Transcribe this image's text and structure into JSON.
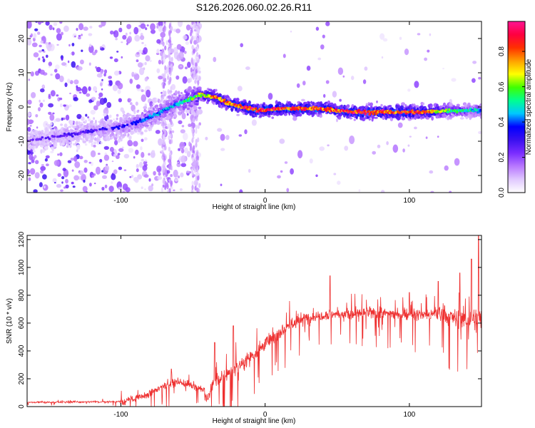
{
  "title": "S126.2026.060.02.26.R11",
  "chart_data": [
    {
      "type": "heatmap",
      "title": "S126.2026.060.02.26.R11",
      "xlabel": "Height of straight line (km)",
      "ylabel": "Frequency (Hz)",
      "xlim": [
        -165,
        150
      ],
      "ylim": [
        -25,
        25
      ],
      "xticks": [
        -100,
        0,
        100
      ],
      "yticks": [
        20,
        10,
        0,
        -10,
        -20
      ],
      "colorbar": {
        "label": "Normalized spectral amplitude",
        "range": [
          0.0,
          0.97
        ],
        "ticks": [
          0.0,
          0.2,
          0.4,
          0.6,
          0.8
        ],
        "tick_labels": [
          "0.0",
          "0.2",
          "0.4",
          "0.6",
          "0.8"
        ],
        "colors": [
          "#ffffff",
          "#e0c8ff",
          "#b878ff",
          "#7a2cff",
          "#3a10f0",
          "#0000ff",
          "#00c8ff",
          "#00ff90",
          "#40ff00",
          "#ffff00",
          "#ffa000",
          "#ff3000",
          "#ff0040",
          "#ff1493"
        ]
      },
      "ridge": {
        "description_points_x": [
          -165,
          -120,
          -100,
          -80,
          -60,
          -45,
          -35,
          -25,
          -15,
          -5,
          10,
          40,
          60,
          75,
          90,
          110,
          130,
          150
        ],
        "frequency": [
          -10,
          -7,
          -6,
          -3,
          1,
          3.5,
          3,
          1,
          0,
          -1,
          -0.5,
          -0.5,
          -1.5,
          -1.5,
          -1.5,
          -1.5,
          -1,
          -1
        ],
        "peak_amplitude": [
          0.25,
          0.3,
          0.35,
          0.45,
          0.5,
          0.7,
          0.85,
          0.9,
          0.92,
          0.95,
          0.95,
          0.9,
          0.95,
          0.95,
          0.92,
          0.9,
          0.6,
          0.5
        ]
      }
    },
    {
      "type": "line",
      "xlabel": "Height of straight line (km)",
      "ylabel": "SNR (10 * v/v)",
      "xlim": [
        -165,
        150
      ],
      "ylim": [
        0,
        1230
      ],
      "xticks": [
        -100,
        0,
        100
      ],
      "yticks": [
        0,
        200,
        400,
        600,
        800,
        1000,
        1200
      ],
      "series": [
        {
          "name": "SNR",
          "color": "#ee3030",
          "trend_x": [
            -165,
            -100,
            -85,
            -70,
            -60,
            -50,
            -42,
            -40,
            -30,
            -20,
            -10,
            0,
            10,
            20,
            30,
            40,
            50,
            60,
            70,
            80,
            90,
            100,
            110,
            120,
            130,
            140,
            150
          ],
          "trend_y": [
            30,
            35,
            70,
            150,
            180,
            150,
            120,
            130,
            210,
            280,
            360,
            450,
            540,
            600,
            640,
            660,
            665,
            660,
            670,
            675,
            665,
            660,
            660,
            660,
            640,
            620,
            640
          ],
          "peaks_x": [
            -65,
            -35,
            -22,
            45,
            100,
            120,
            135,
            143,
            148
          ],
          "peaks_y": [
            270,
            460,
            580,
            940,
            820,
            900,
            960,
            1060,
            1230
          ]
        }
      ]
    }
  ]
}
